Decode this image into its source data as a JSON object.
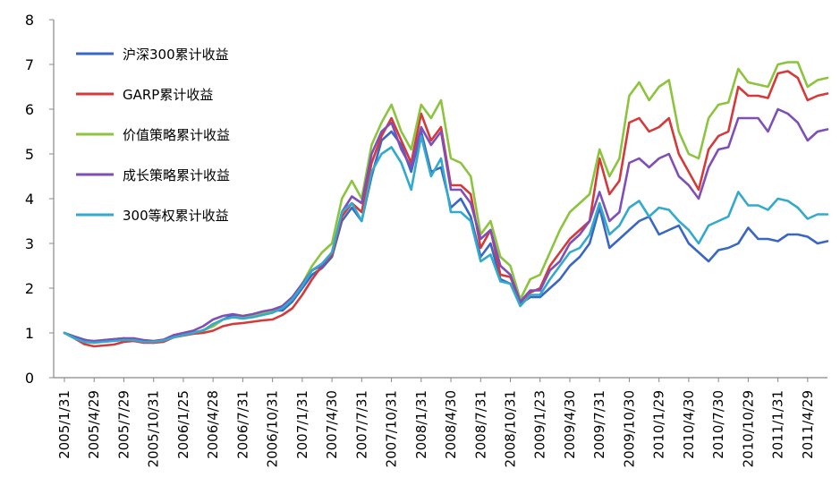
{
  "colors": {
    "hs300": "#3a66c4",
    "garp": "#d43a3a",
    "value": "#8cc43e",
    "growth": "#7f4fb8",
    "ew300": "#33aacc"
  },
  "chart_data": {
    "type": "line",
    "title": "",
    "xlabel": "",
    "ylabel": "",
    "ylim": [
      0,
      8
    ],
    "yticks": [
      "0",
      "1",
      "2",
      "3",
      "4",
      "5",
      "6",
      "7",
      "8"
    ],
    "grid": false,
    "legend_position": "top-left",
    "x_tick_labels": [
      "2005/1/31",
      "2005/4/29",
      "2005/7/29",
      "2005/10/31",
      "2006/1/25",
      "2006/4/28",
      "2006/7/31",
      "2006/10/31",
      "2007/1/31",
      "2007/4/30",
      "2007/7/31",
      "2007/10/31",
      "2008/1/31",
      "2008/4/30",
      "2008/7/31",
      "2008/10/31",
      "2009/1/23",
      "2009/4/30",
      "2009/7/31",
      "2009/10/30",
      "2010/1/29",
      "2010/4/30",
      "2010/7/30",
      "2010/10/29",
      "2011/1/31",
      "2011/4/29"
    ],
    "months_per_tick": 3,
    "series": [
      {
        "key": "hs300",
        "name": "沪深300累计收益",
        "values": [
          1.0,
          0.92,
          0.85,
          0.8,
          0.84,
          0.86,
          0.88,
          0.86,
          0.8,
          0.78,
          0.82,
          0.9,
          0.96,
          1.0,
          1.06,
          1.15,
          1.3,
          1.4,
          1.35,
          1.4,
          1.45,
          1.5,
          1.5,
          1.7,
          2.0,
          2.3,
          2.45,
          2.7,
          3.5,
          3.8,
          3.5,
          4.5,
          5.3,
          5.5,
          5.2,
          4.6,
          5.5,
          4.6,
          4.7,
          3.8,
          4.0,
          3.6,
          2.7,
          3.0,
          2.2,
          2.1,
          1.65,
          1.8,
          1.8,
          2.0,
          2.2,
          2.5,
          2.7,
          3.0,
          3.8,
          2.9,
          3.1,
          3.3,
          3.5,
          3.6,
          3.2,
          3.3,
          3.4,
          3.0,
          2.8,
          2.6,
          2.85,
          2.9,
          3.0,
          3.35,
          3.1,
          3.1,
          3.05,
          3.2,
          3.2,
          3.15,
          3.0,
          3.05
        ]
      },
      {
        "key": "garp",
        "name": "GARP累计收益",
        "values": [
          1.0,
          0.88,
          0.75,
          0.7,
          0.72,
          0.74,
          0.8,
          0.82,
          0.78,
          0.78,
          0.8,
          0.9,
          0.94,
          0.98,
          1.0,
          1.05,
          1.15,
          1.2,
          1.22,
          1.25,
          1.28,
          1.3,
          1.4,
          1.55,
          1.85,
          2.2,
          2.5,
          2.75,
          3.6,
          3.9,
          3.7,
          4.8,
          5.4,
          5.8,
          5.3,
          4.8,
          5.9,
          5.3,
          5.6,
          4.3,
          4.3,
          4.1,
          2.9,
          3.3,
          2.3,
          2.25,
          1.7,
          1.9,
          2.0,
          2.5,
          2.8,
          3.1,
          3.3,
          3.5,
          4.9,
          4.1,
          4.4,
          5.7,
          5.8,
          5.5,
          5.6,
          5.8,
          5.0,
          4.6,
          4.2,
          5.1,
          5.4,
          5.5,
          6.5,
          6.3,
          6.3,
          6.25,
          6.8,
          6.85,
          6.7,
          6.2,
          6.3,
          6.35
        ]
      },
      {
        "key": "value",
        "name": "价值策略累计收益",
        "values": [
          1.0,
          0.9,
          0.8,
          0.78,
          0.82,
          0.84,
          0.86,
          0.86,
          0.82,
          0.8,
          0.84,
          0.92,
          0.98,
          1.02,
          1.05,
          1.15,
          1.3,
          1.35,
          1.35,
          1.4,
          1.45,
          1.5,
          1.6,
          1.8,
          2.1,
          2.5,
          2.8,
          3.0,
          4.0,
          4.4,
          4.0,
          5.2,
          5.7,
          6.1,
          5.5,
          5.1,
          6.1,
          5.8,
          6.2,
          4.9,
          4.8,
          4.5,
          3.2,
          3.5,
          2.7,
          2.5,
          1.75,
          2.2,
          2.3,
          2.8,
          3.3,
          3.7,
          3.9,
          4.1,
          5.1,
          4.5,
          4.9,
          6.3,
          6.6,
          6.2,
          6.5,
          6.65,
          5.5,
          5.0,
          4.9,
          5.8,
          6.1,
          6.15,
          6.9,
          6.6,
          6.55,
          6.5,
          7.0,
          7.05,
          7.05,
          6.5,
          6.65,
          6.7
        ]
      },
      {
        "key": "growth",
        "name": "成长策略累计收益",
        "values": [
          1.0,
          0.9,
          0.84,
          0.82,
          0.84,
          0.86,
          0.88,
          0.88,
          0.84,
          0.82,
          0.85,
          0.95,
          1.0,
          1.05,
          1.15,
          1.3,
          1.38,
          1.42,
          1.38,
          1.42,
          1.48,
          1.52,
          1.6,
          1.8,
          2.1,
          2.4,
          2.5,
          2.8,
          3.7,
          4.05,
          3.9,
          5.0,
          5.5,
          5.7,
          5.1,
          4.7,
          5.6,
          5.2,
          5.5,
          4.2,
          4.2,
          3.9,
          3.1,
          3.3,
          2.5,
          2.3,
          1.7,
          1.95,
          1.95,
          2.4,
          2.6,
          3.0,
          3.2,
          3.5,
          4.15,
          3.5,
          3.7,
          4.8,
          4.9,
          4.7,
          4.9,
          5.0,
          4.5,
          4.3,
          4.0,
          4.7,
          5.1,
          5.15,
          5.8,
          5.8,
          5.8,
          5.5,
          6.0,
          5.9,
          5.7,
          5.3,
          5.5,
          5.55
        ]
      },
      {
        "key": "ew300",
        "name": "300等权累计收益",
        "values": [
          1.0,
          0.88,
          0.8,
          0.78,
          0.8,
          0.82,
          0.84,
          0.84,
          0.8,
          0.8,
          0.83,
          0.9,
          0.95,
          1.0,
          1.05,
          1.2,
          1.3,
          1.35,
          1.32,
          1.35,
          1.4,
          1.45,
          1.55,
          1.75,
          2.05,
          2.4,
          2.55,
          2.8,
          3.7,
          3.9,
          3.5,
          4.6,
          5.0,
          5.15,
          4.8,
          4.2,
          5.4,
          4.5,
          4.9,
          3.7,
          3.7,
          3.5,
          2.6,
          2.75,
          2.15,
          2.1,
          1.6,
          1.85,
          1.85,
          2.2,
          2.5,
          2.8,
          2.9,
          3.2,
          3.9,
          3.2,
          3.4,
          3.8,
          3.95,
          3.6,
          3.8,
          3.75,
          3.5,
          3.3,
          3.0,
          3.4,
          3.5,
          3.6,
          4.15,
          3.85,
          3.85,
          3.75,
          4.0,
          3.95,
          3.8,
          3.55,
          3.65,
          3.65
        ]
      }
    ]
  }
}
